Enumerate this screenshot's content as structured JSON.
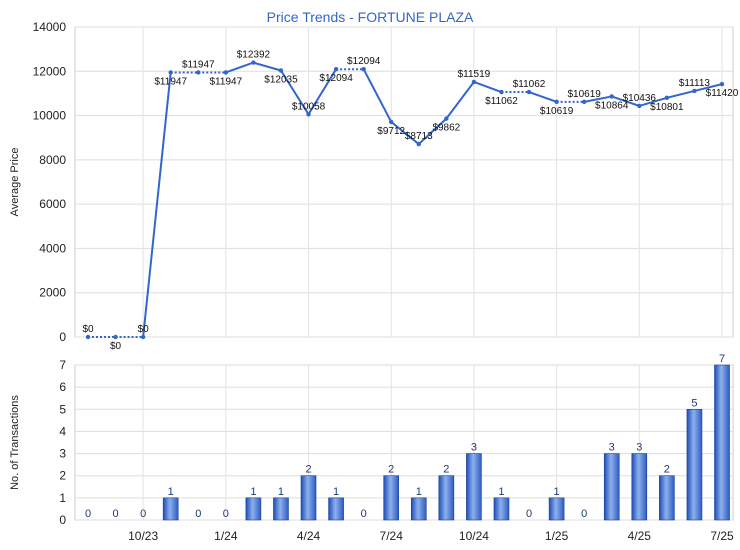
{
  "chart_data": [
    {
      "type": "line",
      "title": "Price Trends - FORTUNE PLAZA",
      "ylabel": "Average Price",
      "ylim": [
        0,
        14000
      ],
      "yticks": [
        0,
        2000,
        4000,
        6000,
        8000,
        10000,
        12000,
        14000
      ],
      "grid": true,
      "series_color": "#3366cc",
      "points": [
        {
          "i": 0,
          "value": 0,
          "label": "$0",
          "dotted_next": true
        },
        {
          "i": 1,
          "value": 0,
          "label": "$0",
          "dotted_next": true
        },
        {
          "i": 2,
          "value": 0,
          "label": "$0"
        },
        {
          "i": 3,
          "value": 11947,
          "label": "$11947",
          "dotted_next": true
        },
        {
          "i": 4,
          "value": 11947,
          "label": "$11947",
          "dotted_next": true
        },
        {
          "i": 5,
          "value": 11947,
          "label": "$11947"
        },
        {
          "i": 6,
          "value": 12392,
          "label": "$12392"
        },
        {
          "i": 7,
          "value": 12035,
          "label": "$12035"
        },
        {
          "i": 8,
          "value": 10058,
          "label": "$10058"
        },
        {
          "i": 9,
          "value": 12094,
          "label": "$12094",
          "dotted_next": true
        },
        {
          "i": 10,
          "value": 12094,
          "label": "$12094"
        },
        {
          "i": 11,
          "value": 9712,
          "label": "$9712"
        },
        {
          "i": 12,
          "value": 8713,
          "label": "$8713"
        },
        {
          "i": 13,
          "value": 9862,
          "label": "$9862"
        },
        {
          "i": 14,
          "value": 11519,
          "label": "$11519"
        },
        {
          "i": 15,
          "value": 11062,
          "label": "$11062",
          "dotted_next": true
        },
        {
          "i": 16,
          "value": 11062,
          "label": "$11062"
        },
        {
          "i": 17,
          "value": 10619,
          "label": "$10619",
          "dotted_next": true
        },
        {
          "i": 18,
          "value": 10619,
          "label": "$10619"
        },
        {
          "i": 19,
          "value": 10864,
          "label": "$10864"
        },
        {
          "i": 20,
          "value": 10436,
          "label": "$10436"
        },
        {
          "i": 21,
          "value": 10801,
          "label": "$10801"
        },
        {
          "i": 22,
          "value": 11113,
          "label": "$11113"
        },
        {
          "i": 23,
          "value": 11420,
          "label": "$11420"
        }
      ]
    },
    {
      "type": "bar",
      "ylabel": "No. of Transactions",
      "ylim": [
        0,
        7
      ],
      "yticks": [
        0,
        1,
        2,
        3,
        4,
        5,
        6,
        7
      ],
      "grid": true,
      "series_color": "#3366cc",
      "values": [
        0,
        0,
        0,
        1,
        0,
        0,
        1,
        1,
        2,
        1,
        0,
        2,
        1,
        2,
        3,
        1,
        0,
        1,
        0,
        3,
        3,
        2,
        5,
        7
      ],
      "x_ticks": [
        {
          "i": 2,
          "label": "10/23"
        },
        {
          "i": 5,
          "label": "1/24"
        },
        {
          "i": 8,
          "label": "4/24"
        },
        {
          "i": 11,
          "label": "7/24"
        },
        {
          "i": 14,
          "label": "10/24"
        },
        {
          "i": 17,
          "label": "1/25"
        },
        {
          "i": 20,
          "label": "4/25"
        },
        {
          "i": 23,
          "label": "7/25"
        }
      ]
    }
  ]
}
